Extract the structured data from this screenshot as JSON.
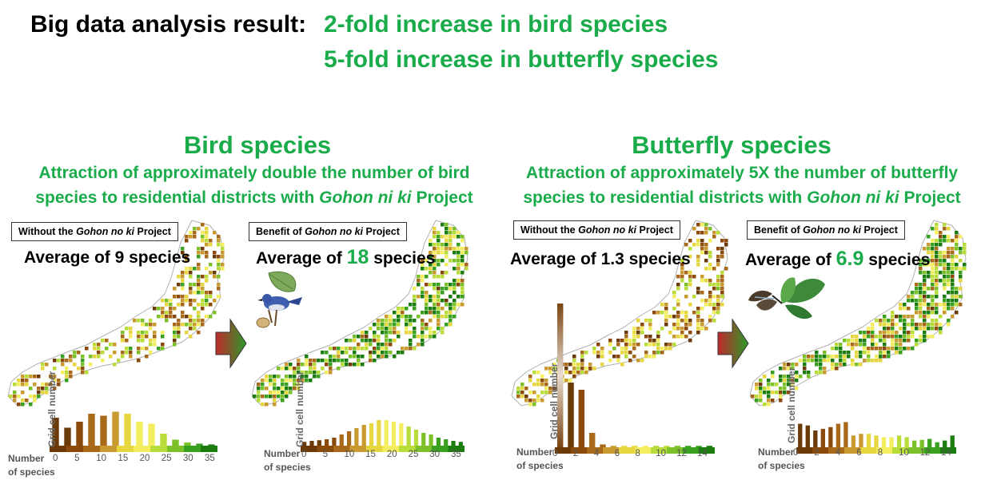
{
  "header": {
    "label": "Big data analysis result:",
    "line1": "2-fold increase in bird species",
    "line2": "5-fold increase in butterfly species"
  },
  "sections": [
    {
      "title": "Bird species",
      "subtitle_line1": "Attraction of approximately double the number of bird",
      "subtitle_line2_pre": "species to residential districts with ",
      "subtitle_line2_italic": "Gohon ni ki",
      "subtitle_line2_post": " Project",
      "panels": [
        {
          "box_pre": "Without the ",
          "box_italic": "Gohon no ki",
          "box_post": " Project",
          "avg_pre": "Average of ",
          "avg_num": "9",
          "avg_post": " species",
          "ylabel": "Grid cell number",
          "xlabel_1": "Number",
          "xlabel_2": "of species",
          "tick_labels": [
            "0",
            "5",
            "10",
            "15",
            "20",
            "25",
            "30",
            "35"
          ]
        },
        {
          "box_pre": "Benefit of ",
          "box_italic": "Gohon no ki",
          "box_post": " Project",
          "avg_pre": "Average of ",
          "avg_num": "18",
          "avg_post": " species",
          "ylabel": "Grid cell number",
          "xlabel_1": "Number",
          "xlabel_2": "of species",
          "tick_labels": [
            "0",
            "5",
            "10",
            "15",
            "20",
            "25",
            "30",
            "35"
          ]
        }
      ]
    },
    {
      "title": "Butterfly species",
      "subtitle_line1": "Attraction of approximately 5X the number of butterfly",
      "subtitle_line2_pre": "species to residential districts with ",
      "subtitle_line2_italic": "Gohon ni ki",
      "subtitle_line2_post": " Project",
      "panels": [
        {
          "box_pre": "Without the ",
          "box_italic": "Gohon no ki",
          "box_post": " Project",
          "avg_pre": "Average of ",
          "avg_num": "1.3",
          "avg_post": " species",
          "ylabel": "Grid cell number",
          "xlabel_1": "Number",
          "xlabel_2": "of species",
          "tick_labels": [
            "0",
            "2",
            "4",
            "6",
            "8",
            "10",
            "12",
            "14"
          ]
        },
        {
          "box_pre": "Benefit of ",
          "box_italic": "Gohon no ki",
          "box_post": " Project",
          "avg_pre": "Average of ",
          "avg_num": "6.9",
          "avg_post": " species",
          "ylabel": "Grid cell number",
          "xlabel_1": "Number",
          "xlabel_2": "of species",
          "tick_labels": [
            "0",
            "2",
            "4",
            "6",
            "8",
            "10",
            "12",
            "14"
          ]
        }
      ]
    }
  ],
  "histograms": [
    {
      "bins_max": 36,
      "values": [
        0.7,
        0.45,
        0.6,
        0.8,
        0.75,
        0.85,
        0.8,
        0.6,
        0.55,
        0.3,
        0.15,
        0.08,
        0.05,
        0.03
      ]
    },
    {
      "bins_max": 36,
      "values": [
        0.12,
        0.15,
        0.17,
        0.2,
        0.25,
        0.35,
        0.45,
        0.55,
        0.65,
        0.7,
        0.8,
        0.8,
        0.75,
        0.7,
        0.6,
        0.5,
        0.4,
        0.35,
        0.25,
        0.2,
        0.15,
        0.12
      ]
    },
    {
      "bins_max": 15,
      "values": [
        1.0,
        0.45,
        0.4,
        0.1,
        0.02,
        0.01,
        0.01,
        0.01,
        0.01,
        0.01,
        0.01,
        0.01,
        0.01,
        0.01,
        0.01
      ]
    },
    {
      "bins_max": 15,
      "values": [
        0.7,
        0.65,
        0.5,
        0.55,
        0.6,
        0.7,
        0.75,
        0.35,
        0.4,
        0.4,
        0.35,
        0.3,
        0.3,
        0.35,
        0.3,
        0.2,
        0.22,
        0.25,
        0.15,
        0.2,
        0.35
      ]
    }
  ],
  "colors": {
    "accent_green": "#1aab4a",
    "ramp": [
      "#6b3a08",
      "#8b4a0b",
      "#a86a1a",
      "#c89a30",
      "#e6d640",
      "#f2ee60",
      "#b8dd3a",
      "#7cc02a",
      "#3aa020",
      "#1b7d10"
    ]
  }
}
